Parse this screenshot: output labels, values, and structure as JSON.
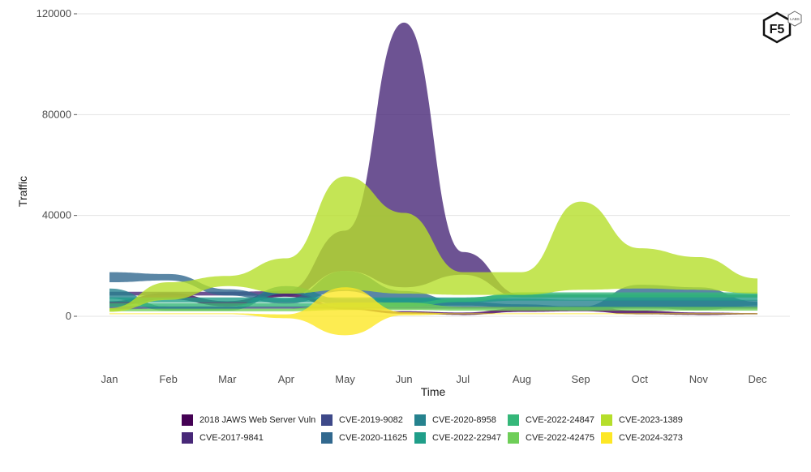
{
  "chart_data": {
    "type": "area",
    "subtype": "streamgraph",
    "title": "",
    "xlabel": "Time",
    "ylabel": "Traffic",
    "categories": [
      "Jan",
      "Feb",
      "Mar",
      "Apr",
      "May",
      "Jun",
      "Jul",
      "Aug",
      "Sep",
      "Oct",
      "Nov",
      "Dec"
    ],
    "ylim": [
      -20000,
      120000
    ],
    "yticks": [
      0,
      40000,
      80000,
      120000
    ],
    "ytick_labels": [
      "0",
      "40000",
      "80000",
      "120000"
    ],
    "grid": true,
    "legend_position": "bottom",
    "series": [
      {
        "name": "2018 JAWS Web Server Vuln",
        "color": "#440154",
        "center": [
          5000,
          8000,
          5000,
          9000,
          3000,
          1500,
          1000,
          2500,
          3000,
          1500,
          1000,
          1000
        ],
        "values": [
          2000,
          2500,
          2000,
          2500,
          500,
          1000,
          1000,
          1500,
          2000,
          1500,
          1000,
          500
        ]
      },
      {
        "name": "CVE-2017-9841",
        "color": "#482878",
        "center": [
          9000,
          9000,
          9000,
          9000,
          26000,
          64000,
          21000,
          8000,
          8000,
          8000,
          8000,
          8000
        ],
        "values": [
          1500,
          1500,
          1500,
          2000,
          16000,
          105000,
          9000,
          1000,
          1000,
          1000,
          1000,
          1000
        ]
      },
      {
        "name": "CVE-2019-9082",
        "color": "#3e4989",
        "center": [
          3500,
          3500,
          3500,
          3500,
          3500,
          3500,
          3500,
          3500,
          3500,
          3500,
          3500,
          3500
        ],
        "values": [
          1500,
          1000,
          1000,
          1000,
          1000,
          1000,
          1000,
          1000,
          1000,
          1000,
          1000,
          1000
        ]
      },
      {
        "name": "CVE-2020-11625",
        "color": "#31688e",
        "center": [
          15500,
          15500,
          9500,
          6000,
          14000,
          7000,
          5000,
          4000,
          3000,
          8000,
          7000,
          5000
        ],
        "values": [
          4000,
          2500,
          2500,
          2000,
          8000,
          6000,
          1500,
          1500,
          1500,
          9000,
          9000,
          1500
        ]
      },
      {
        "name": "CVE-2020-8958",
        "color": "#26828e",
        "center": [
          9000,
          3000,
          3000,
          10500,
          5500,
          5500,
          5500,
          5500,
          5000,
          5000,
          5000,
          5000
        ],
        "values": [
          4000,
          1500,
          1500,
          3000,
          2500,
          3000,
          3000,
          3000,
          3000,
          3000,
          3000,
          3000
        ]
      },
      {
        "name": "CVE-2022-22947",
        "color": "#1f9e89",
        "center": [
          6500,
          6500,
          6500,
          6500,
          6500,
          6500,
          6500,
          7500,
          7500,
          7500,
          7500,
          7500
        ],
        "values": [
          2000,
          2000,
          2000,
          2000,
          2000,
          2000,
          2000,
          2500,
          2500,
          2500,
          2500,
          2500
        ]
      },
      {
        "name": "CVE-2022-24847",
        "color": "#35b779",
        "center": [
          4500,
          4500,
          4500,
          4500,
          4500,
          4500,
          6500,
          8500,
          8500,
          8500,
          8500,
          8500
        ],
        "values": [
          1500,
          1500,
          1500,
          1500,
          1500,
          1500,
          1500,
          2000,
          2000,
          2000,
          2000,
          2000
        ]
      },
      {
        "name": "CVE-2022-42475",
        "color": "#6ece58",
        "center": [
          2500,
          2500,
          2500,
          2500,
          4000,
          4000,
          3000,
          3000,
          3000,
          3000,
          3000,
          3000
        ],
        "values": [
          1000,
          1000,
          1000,
          1000,
          3000,
          3000,
          1500,
          1500,
          1500,
          1500,
          1500,
          1500
        ]
      },
      {
        "name": "CVE-2023-1389",
        "color": "#b5de2b",
        "center": [
          2500,
          10000,
          14000,
          16000,
          33000,
          25000,
          13000,
          13000,
          28000,
          19000,
          17000,
          12000
        ],
        "values": [
          1500,
          7000,
          4000,
          14000,
          45000,
          32000,
          9000,
          9000,
          35000,
          16000,
          13000,
          6000
        ]
      },
      {
        "name": "CVE-2024-3273",
        "color": "#fde725",
        "center": [
          1000,
          1000,
          1000,
          0,
          2000,
          1000,
          1000,
          1000,
          1000,
          1000,
          1000,
          1000
        ],
        "values": [
          300,
          300,
          300,
          1500,
          19000,
          1200,
          300,
          300,
          300,
          300,
          300,
          300
        ]
      }
    ]
  },
  "logo": {
    "main_text": "F5",
    "sub_text": "LABS"
  },
  "colors": {
    "grid": "#e3e3e3",
    "background": "#ffffff"
  }
}
